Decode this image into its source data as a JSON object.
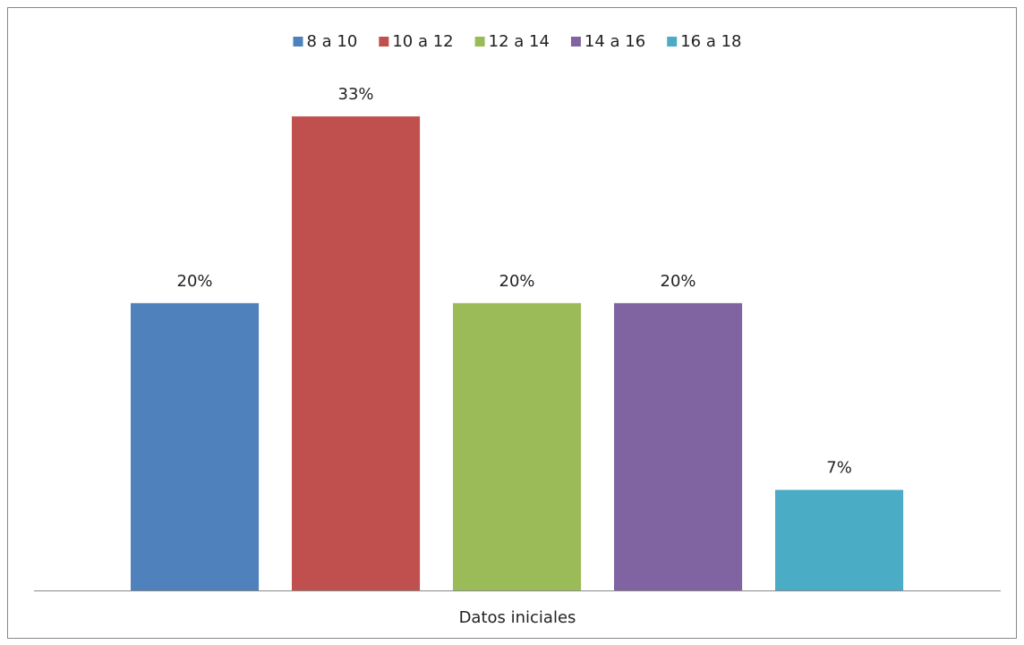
{
  "chart_data": {
    "type": "bar",
    "categories": [
      "Datos iniciales"
    ],
    "series": [
      {
        "name": "8 a 10",
        "color": "#4f81bd",
        "values": [
          20
        ],
        "value_labels": [
          "20%"
        ]
      },
      {
        "name": "10 a 12",
        "color": "#c0504d",
        "values": [
          33
        ],
        "value_labels": [
          "33%"
        ]
      },
      {
        "name": "12 a 14",
        "color": "#9bbb59",
        "values": [
          20
        ],
        "value_labels": [
          "20%"
        ]
      },
      {
        "name": "14 a 16",
        "color": "#8064a2",
        "values": [
          20
        ],
        "value_labels": [
          "20%"
        ]
      },
      {
        "name": "16 a 18",
        "color": "#4bacc6",
        "values": [
          7
        ],
        "value_labels": [
          "7%"
        ]
      }
    ],
    "ylim": [
      0,
      35
    ],
    "legend": "top"
  }
}
